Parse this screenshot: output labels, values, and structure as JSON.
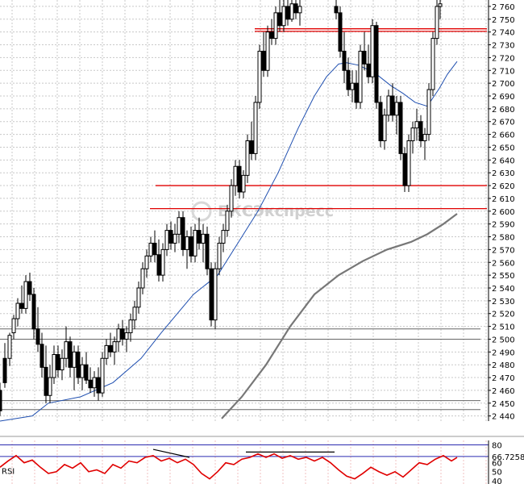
{
  "watermark_text": "БКСЭкспресс",
  "chart_data": [
    {
      "type": "candlestick",
      "yticks": [
        2440,
        2450,
        2460,
        2470,
        2480,
        2490,
        2500,
        2510,
        2520,
        2530,
        2540,
        2550,
        2560,
        2570,
        2580,
        2590,
        2600,
        2610,
        2620,
        2630,
        2640,
        2650,
        2660,
        2670,
        2680,
        2690,
        2700,
        2710,
        2720,
        2730,
        2740,
        2750,
        2760
      ],
      "ylim": [
        2436,
        2765
      ],
      "grid": true,
      "red_levels": [
        2740.5,
        2742.5,
        2620,
        2602
      ],
      "gray_levels": [
        2508,
        2500,
        2452,
        2445
      ],
      "ma_fast": [
        [
          0,
          2436
        ],
        [
          40,
          2440
        ],
        [
          60,
          2450
        ],
        [
          100,
          2455
        ],
        [
          140,
          2466
        ],
        [
          175,
          2485
        ],
        [
          200,
          2505
        ],
        [
          240,
          2535
        ],
        [
          270,
          2550
        ],
        [
          295,
          2575
        ],
        [
          320,
          2600
        ],
        [
          345,
          2630
        ],
        [
          370,
          2665
        ],
        [
          390,
          2690
        ],
        [
          405,
          2705
        ],
        [
          420,
          2715
        ],
        [
          430,
          2716
        ],
        [
          445,
          2714
        ],
        [
          465,
          2708
        ],
        [
          485,
          2698
        ],
        [
          500,
          2692
        ],
        [
          515,
          2685
        ],
        [
          530,
          2682
        ],
        [
          545,
          2696
        ],
        [
          555,
          2707
        ],
        [
          567,
          2717
        ]
      ],
      "ma_slow": [
        [
          275,
          2438
        ],
        [
          300,
          2455
        ],
        [
          330,
          2480
        ],
        [
          360,
          2510
        ],
        [
          390,
          2535
        ],
        [
          420,
          2550
        ],
        [
          450,
          2561
        ],
        [
          480,
          2570
        ],
        [
          510,
          2576
        ],
        [
          530,
          2582
        ],
        [
          550,
          2590
        ],
        [
          567,
          2598
        ]
      ],
      "candles": [
        [
          0,
          2460,
          2466,
          2440,
          2444
        ],
        [
          6,
          2485,
          2497,
          2462,
          2466
        ],
        [
          12,
          2485,
          2505,
          2479,
          2503
        ],
        [
          17,
          2505,
          2519,
          2500,
          2516
        ],
        [
          22,
          2516,
          2532,
          2510,
          2528
        ],
        [
          27,
          2528,
          2542,
          2520,
          2524
        ],
        [
          32,
          2524,
          2550,
          2520,
          2545
        ],
        [
          37,
          2545,
          2552,
          2530,
          2535
        ],
        [
          42,
          2535,
          2540,
          2500,
          2508
        ],
        [
          47,
          2508,
          2525,
          2490,
          2496
        ],
        [
          52,
          2496,
          2505,
          2470,
          2478
        ],
        [
          57,
          2478,
          2495,
          2450,
          2456
        ],
        [
          62,
          2456,
          2480,
          2450,
          2470
        ],
        [
          67,
          2470,
          2495,
          2465,
          2488
        ],
        [
          72,
          2488,
          2495,
          2470,
          2476
        ],
        [
          77,
          2476,
          2492,
          2468,
          2485
        ],
        [
          82,
          2485,
          2510,
          2478,
          2498
        ],
        [
          87,
          2498,
          2502,
          2470,
          2478
        ],
        [
          92,
          2478,
          2495,
          2460,
          2490
        ],
        [
          97,
          2490,
          2495,
          2465,
          2470
        ],
        [
          102,
          2470,
          2486,
          2460,
          2480
        ],
        [
          107,
          2480,
          2490,
          2465,
          2468
        ],
        [
          112,
          2468,
          2478,
          2458,
          2462
        ],
        [
          117,
          2462,
          2475,
          2455,
          2470
        ],
        [
          122,
          2470,
          2478,
          2452,
          2458
        ],
        [
          127,
          2458,
          2490,
          2455,
          2485
        ],
        [
          132,
          2485,
          2500,
          2480,
          2495
        ],
        [
          137,
          2495,
          2505,
          2486,
          2490
        ],
        [
          142,
          2490,
          2502,
          2480,
          2498
        ],
        [
          147,
          2498,
          2512,
          2490,
          2508
        ],
        [
          152,
          2508,
          2515,
          2495,
          2500
        ],
        [
          157,
          2500,
          2510,
          2490,
          2505
        ],
        [
          162,
          2505,
          2520,
          2498,
          2515
        ],
        [
          167,
          2515,
          2530,
          2508,
          2525
        ],
        [
          172,
          2525,
          2545,
          2520,
          2540
        ],
        [
          177,
          2540,
          2560,
          2535,
          2555
        ],
        [
          182,
          2555,
          2570,
          2548,
          2565
        ],
        [
          187,
          2565,
          2580,
          2560,
          2575
        ],
        [
          192,
          2575,
          2585,
          2560,
          2566
        ],
        [
          197,
          2566,
          2578,
          2545,
          2550
        ],
        [
          202,
          2550,
          2575,
          2545,
          2570
        ],
        [
          207,
          2570,
          2590,
          2565,
          2585
        ],
        [
          212,
          2585,
          2592,
          2570,
          2575
        ],
        [
          217,
          2575,
          2590,
          2568,
          2582
        ],
        [
          222,
          2582,
          2600,
          2575,
          2595
        ],
        [
          227,
          2595,
          2600,
          2565,
          2570
        ],
        [
          232,
          2570,
          2585,
          2555,
          2580
        ],
        [
          237,
          2580,
          2588,
          2560,
          2565
        ],
        [
          242,
          2565,
          2590,
          2560,
          2585
        ],
        [
          247,
          2585,
          2595,
          2570,
          2575
        ],
        [
          252,
          2575,
          2590,
          2560,
          2582
        ],
        [
          257,
          2582,
          2588,
          2550,
          2555
        ],
        [
          262,
          2555,
          2560,
          2510,
          2515
        ],
        [
          267,
          2515,
          2560,
          2508,
          2555
        ],
        [
          272,
          2555,
          2580,
          2550,
          2575
        ],
        [
          277,
          2575,
          2590,
          2568,
          2585
        ],
        [
          282,
          2585,
          2605,
          2580,
          2600
        ],
        [
          287,
          2600,
          2625,
          2595,
          2620
        ],
        [
          292,
          2620,
          2640,
          2612,
          2635
        ],
        [
          297,
          2635,
          2640,
          2610,
          2615
        ],
        [
          302,
          2615,
          2632,
          2610,
          2628
        ],
        [
          307,
          2628,
          2660,
          2622,
          2655
        ],
        [
          312,
          2655,
          2670,
          2640,
          2645
        ],
        [
          317,
          2645,
          2690,
          2640,
          2685
        ],
        [
          322,
          2685,
          2730,
          2680,
          2725
        ],
        [
          327,
          2725,
          2740,
          2705,
          2710
        ],
        [
          332,
          2710,
          2745,
          2705,
          2740
        ],
        [
          337,
          2740,
          2750,
          2730,
          2735
        ],
        [
          342,
          2735,
          2760,
          2730,
          2755
        ],
        [
          347,
          2755,
          2765,
          2740,
          2745
        ],
        [
          352,
          2745,
          2765,
          2740,
          2760
        ],
        [
          357,
          2760,
          2765,
          2745,
          2750
        ],
        [
          362,
          2750,
          2765,
          2748,
          2762
        ],
        [
          367,
          2762,
          2765,
          2750,
          2755
        ],
        [
          372,
          2755,
          2765,
          2745,
          2760
        ],
        [
          417,
          2760,
          2765,
          2750,
          2755
        ],
        [
          422,
          2755,
          2760,
          2720,
          2725
        ],
        [
          427,
          2725,
          2740,
          2700,
          2710
        ],
        [
          432,
          2710,
          2720,
          2690,
          2695
        ],
        [
          437,
          2695,
          2710,
          2685,
          2700
        ],
        [
          442,
          2700,
          2710,
          2680,
          2685
        ],
        [
          447,
          2685,
          2730,
          2680,
          2725
        ],
        [
          452,
          2725,
          2740,
          2710,
          2715
        ],
        [
          457,
          2715,
          2730,
          2700,
          2705
        ],
        [
          462,
          2705,
          2750,
          2700,
          2745
        ],
        [
          467,
          2745,
          2748,
          2680,
          2685
        ],
        [
          472,
          2685,
          2690,
          2650,
          2655
        ],
        [
          477,
          2655,
          2680,
          2648,
          2675
        ],
        [
          482,
          2675,
          2695,
          2670,
          2690
        ],
        [
          487,
          2690,
          2700,
          2670,
          2675
        ],
        [
          492,
          2675,
          2690,
          2660,
          2685
        ],
        [
          497,
          2685,
          2690,
          2640,
          2645
        ],
        [
          502,
          2645,
          2650,
          2615,
          2620
        ],
        [
          507,
          2620,
          2660,
          2615,
          2655
        ],
        [
          512,
          2655,
          2670,
          2645,
          2665
        ],
        [
          517,
          2665,
          2680,
          2655,
          2670
        ],
        [
          522,
          2670,
          2675,
          2650,
          2655
        ],
        [
          527,
          2655,
          2665,
          2640,
          2660
        ],
        [
          532,
          2660,
          2700,
          2655,
          2695
        ],
        [
          537,
          2695,
          2740,
          2690,
          2735
        ],
        [
          542,
          2735,
          2765,
          2730,
          2760
        ],
        [
          546,
          2760,
          2765,
          2750,
          2762
        ]
      ]
    },
    {
      "type": "line",
      "name": "RSI",
      "yticks": [
        40,
        50,
        60,
        66.7258,
        80
      ],
      "ytick_labels": [
        "40",
        "50",
        "60",
        "66.72582",
        "80"
      ],
      "ylim": [
        38,
        85
      ],
      "ref_lines": [
        80,
        67
      ],
      "values": [
        [
          0,
          55
        ],
        [
          10,
          62
        ],
        [
          20,
          68
        ],
        [
          30,
          60
        ],
        [
          40,
          63
        ],
        [
          50,
          55
        ],
        [
          60,
          48
        ],
        [
          70,
          50
        ],
        [
          80,
          58
        ],
        [
          90,
          54
        ],
        [
          100,
          60
        ],
        [
          110,
          50
        ],
        [
          120,
          52
        ],
        [
          130,
          48
        ],
        [
          140,
          58
        ],
        [
          150,
          54
        ],
        [
          160,
          62
        ],
        [
          170,
          60
        ],
        [
          180,
          66
        ],
        [
          190,
          68
        ],
        [
          200,
          62
        ],
        [
          210,
          65
        ],
        [
          220,
          60
        ],
        [
          230,
          64
        ],
        [
          240,
          58
        ],
        [
          250,
          48
        ],
        [
          260,
          42
        ],
        [
          270,
          50
        ],
        [
          280,
          60
        ],
        [
          290,
          58
        ],
        [
          300,
          64
        ],
        [
          310,
          66
        ],
        [
          320,
          70
        ],
        [
          330,
          66
        ],
        [
          340,
          70
        ],
        [
          350,
          65
        ],
        [
          360,
          68
        ],
        [
          370,
          64
        ],
        [
          380,
          66
        ],
        [
          390,
          62
        ],
        [
          400,
          66
        ],
        [
          410,
          60
        ],
        [
          420,
          52
        ],
        [
          430,
          45
        ],
        [
          440,
          42
        ],
        [
          450,
          48
        ],
        [
          460,
          55
        ],
        [
          470,
          50
        ],
        [
          480,
          46
        ],
        [
          490,
          50
        ],
        [
          500,
          44
        ],
        [
          510,
          52
        ],
        [
          520,
          60
        ],
        [
          530,
          58
        ],
        [
          540,
          64
        ],
        [
          550,
          68
        ],
        [
          560,
          62
        ],
        [
          567,
          66
        ]
      ],
      "annotation_lines": [
        [
          [
            190,
            75
          ],
          [
            235,
            66
          ]
        ],
        [
          [
            305,
            72
          ],
          [
            415,
            72
          ]
        ]
      ]
    }
  ]
}
